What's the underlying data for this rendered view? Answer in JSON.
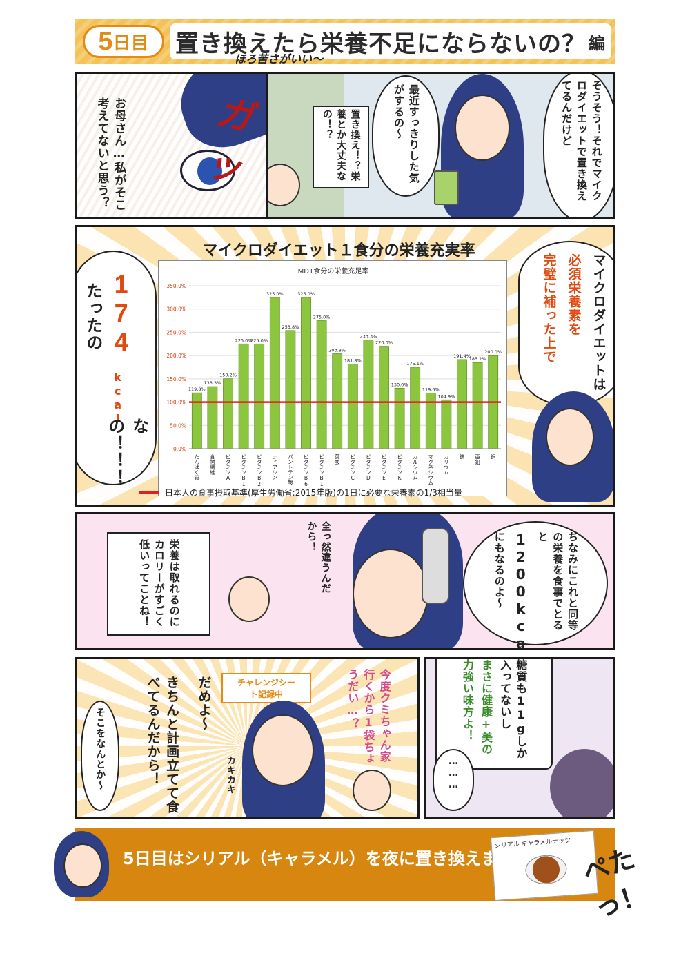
{
  "header": {
    "day_num": "5",
    "day_label": "日目",
    "title": "置き換えたら栄養不足にならないの？",
    "title_suffix": "編"
  },
  "panel1": {
    "sfx": "ガッ",
    "speech": "お母さん…私がそこ考えてないと思う？"
  },
  "panel2": {
    "speech_daughter": "そうそう！それでマイクロダイエットで置き換えてるんだけど",
    "speech_refreshed": "最近すっきりした気がするの〜",
    "speech_mother": "置き換え！？栄養とか大丈夫なの！？"
  },
  "panel3": {
    "chart_heading": "マイクロダイエット１食分の栄養充実率",
    "left_text_a": "たったの",
    "left_text_num": "174",
    "left_text_unit": "kcal",
    "left_text_b": "なの！！！",
    "right_text_a": "マイクロダイエットは",
    "right_text_b": "必須栄養素を",
    "right_text_c": "完璧に補った上で",
    "legend_text": "日本人の食事摂取基準(厚生労働省:2015年版)の1日に必要な栄養素の1/3相当量"
  },
  "chart_data": {
    "type": "bar",
    "title": "MD1食分の栄養充足率",
    "categories": [
      "たんぱく質",
      "食物繊維",
      "ビタミンA",
      "ビタミンB1",
      "ビタミンB2",
      "ナイアシン",
      "パントテン酸",
      "ビタミンB6",
      "ビタミンB12",
      "葉酸",
      "ビタミンC",
      "ビタミンD",
      "ビタミンE",
      "ビタミンK",
      "カルシウム",
      "マグネシウム",
      "カリウム",
      "鉄",
      "亜鉛",
      "銅"
    ],
    "values": [
      119.8,
      133.3,
      150.2,
      225.0,
      225.0,
      325.0,
      253.8,
      325.0,
      275.0,
      203.8,
      181.8,
      233.3,
      220.0,
      130.0,
      175.1,
      119.6,
      104.9,
      191.4,
      185.2,
      200.0
    ],
    "value_labels": [
      "119.8%",
      "133.3%",
      "150.2%",
      "225.0%",
      "225.0%",
      "325.0%",
      "253.8%",
      "325.0%",
      "275.0%",
      "203.8%",
      "181.8%",
      "233.3%",
      "220.0%",
      "130.0%",
      "175.1%",
      "119.6%",
      "104.9%",
      "191.4%",
      "185.2%",
      "200.0%"
    ],
    "ylim": [
      0,
      350
    ],
    "yticks": [
      "0.0%",
      "50.0%",
      "100.0%",
      "150.0%",
      "200.0%",
      "250.0%",
      "300.0%",
      "350.0%"
    ],
    "reference_line": 100,
    "colors": {
      "bar": "#8cc63f",
      "bar_edge": "#5e8f22",
      "reference": "#e02020"
    }
  },
  "panel4": {
    "speech_daughter": "ちなみにこれと同等の栄養を食事でとると",
    "speech_kcal": "1200kcal",
    "speech_tail": "にもなるのよ〜",
    "speech_different": "全っ然違うんだから！",
    "speech_mother": "栄養は取れるのにカロリーがすごく低いってことね！"
  },
  "panel5": {
    "sign": "チャレンジシート記録中",
    "speech_mother": "今度クミちゃん家行くから1袋ちょうだい…？",
    "speech_daughter_a": "だめよ〜",
    "speech_daughter_b": "きちんと計画立てて食べてるんだから！",
    "speech_mother2": "そこをなんとか〜",
    "sfx": "カキカキ"
  },
  "panel6": {
    "speech_a": "糖質も11gしか入ってないし",
    "speech_b": "まさに健康+美の",
    "speech_c": "力強い味方よ！",
    "speech_dots": "………"
  },
  "footer": {
    "text": "5日目はシリアル（キャラメル）を夜に置き換えました♪",
    "sub": "ほろ苦さがいい〜",
    "product": "シリアル キャラメルナッツ",
    "sfx": "ぺたっ！"
  }
}
